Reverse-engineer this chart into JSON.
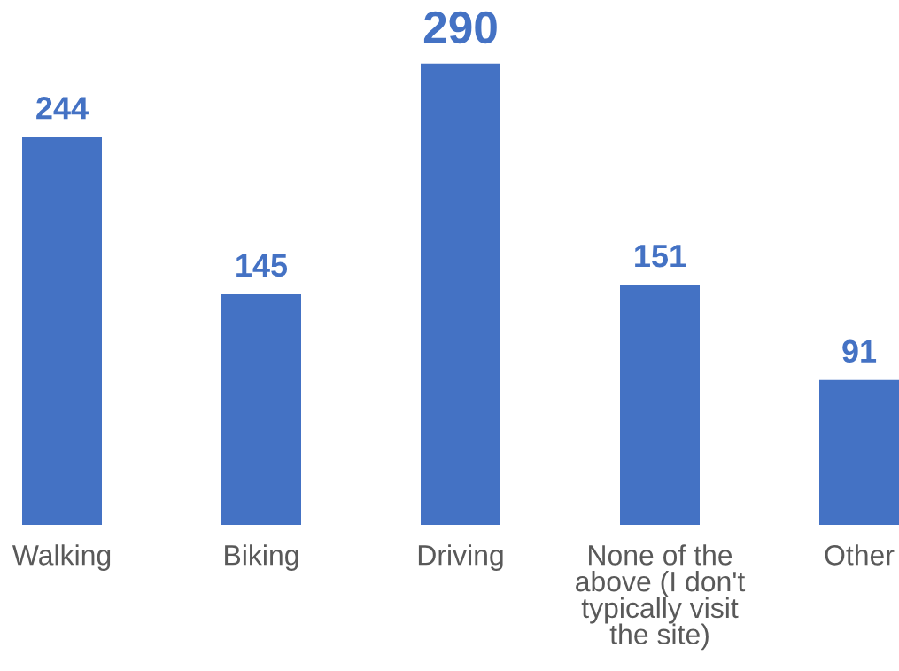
{
  "chart_data": {
    "type": "bar",
    "categories": [
      "Walking",
      "Biking",
      "Driving",
      "None of the above (I don't typically visit the site)",
      "Other"
    ],
    "values": [
      244,
      145,
      290,
      151,
      91
    ],
    "color": "#4472c4",
    "data_labels": true,
    "tick_labels": "x",
    "grid": false,
    "legend": false
  }
}
